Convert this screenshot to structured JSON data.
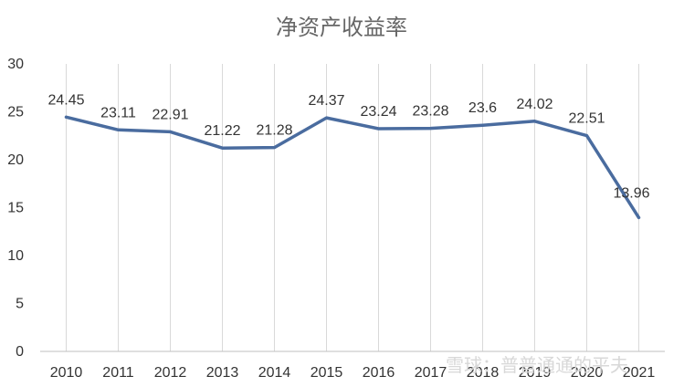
{
  "chart_data": {
    "type": "line",
    "title": "净资产收益率",
    "x": [
      "2010",
      "2011",
      "2012",
      "2013",
      "2014",
      "2015",
      "2016",
      "2017",
      "2018",
      "2019",
      "2020",
      "2021"
    ],
    "series": [
      {
        "values": [
          24.45,
          23.11,
          22.91,
          21.22,
          21.28,
          24.37,
          23.24,
          23.28,
          23.6,
          24.02,
          22.51,
          13.96
        ]
      }
    ],
    "data_labels": [
      "24.45",
      "23.11",
      "22.91",
      "21.22",
      "21.28",
      "24.37",
      "23.24",
      "23.28",
      "23.6",
      "24.02",
      "22.51",
      "13.96"
    ],
    "yticks": [
      "0",
      "5",
      "10",
      "15",
      "20",
      "25",
      "30"
    ],
    "ylim": [
      0,
      30
    ],
    "grid": "vertical",
    "legend": "none",
    "colors": {
      "line": "#4A6C9F",
      "grid": "#D9D9D9",
      "axis": "#BFBFBF"
    }
  },
  "watermark": "雪球：普普通通的平夫"
}
